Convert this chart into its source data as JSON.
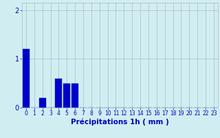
{
  "xlabel": "Précipitations 1h ( mm )",
  "bar_values": [
    1.2,
    0.0,
    0.2,
    0.0,
    0.6,
    0.5,
    0.5,
    0.0,
    0.0,
    0.0,
    0.0,
    0.0,
    0.0,
    0.0,
    0.0,
    0.0,
    0.0,
    0.0,
    0.0,
    0.0,
    0.0,
    0.0,
    0.0,
    0.0
  ],
  "bar_color": "#0000cc",
  "bar_edge_color": "#0033aa",
  "background_color": "#d0eef2",
  "grid_color": "#b0b8c0",
  "xlim": [
    -0.5,
    23.5
  ],
  "ylim": [
    0,
    2.15
  ],
  "yticks": [
    0,
    1,
    2
  ],
  "xtick_labels": [
    "0",
    "1",
    "2",
    "3",
    "4",
    "5",
    "6",
    "7",
    "8",
    "9",
    "10",
    "11",
    "12",
    "13",
    "14",
    "15",
    "16",
    "17",
    "18",
    "19",
    "20",
    "21",
    "22",
    "23"
  ],
  "tick_color": "#0000bb",
  "label_color": "#0000bb",
  "tick_fontsize": 5.5,
  "xlabel_fontsize": 7.5,
  "ytick_fontsize": 7
}
